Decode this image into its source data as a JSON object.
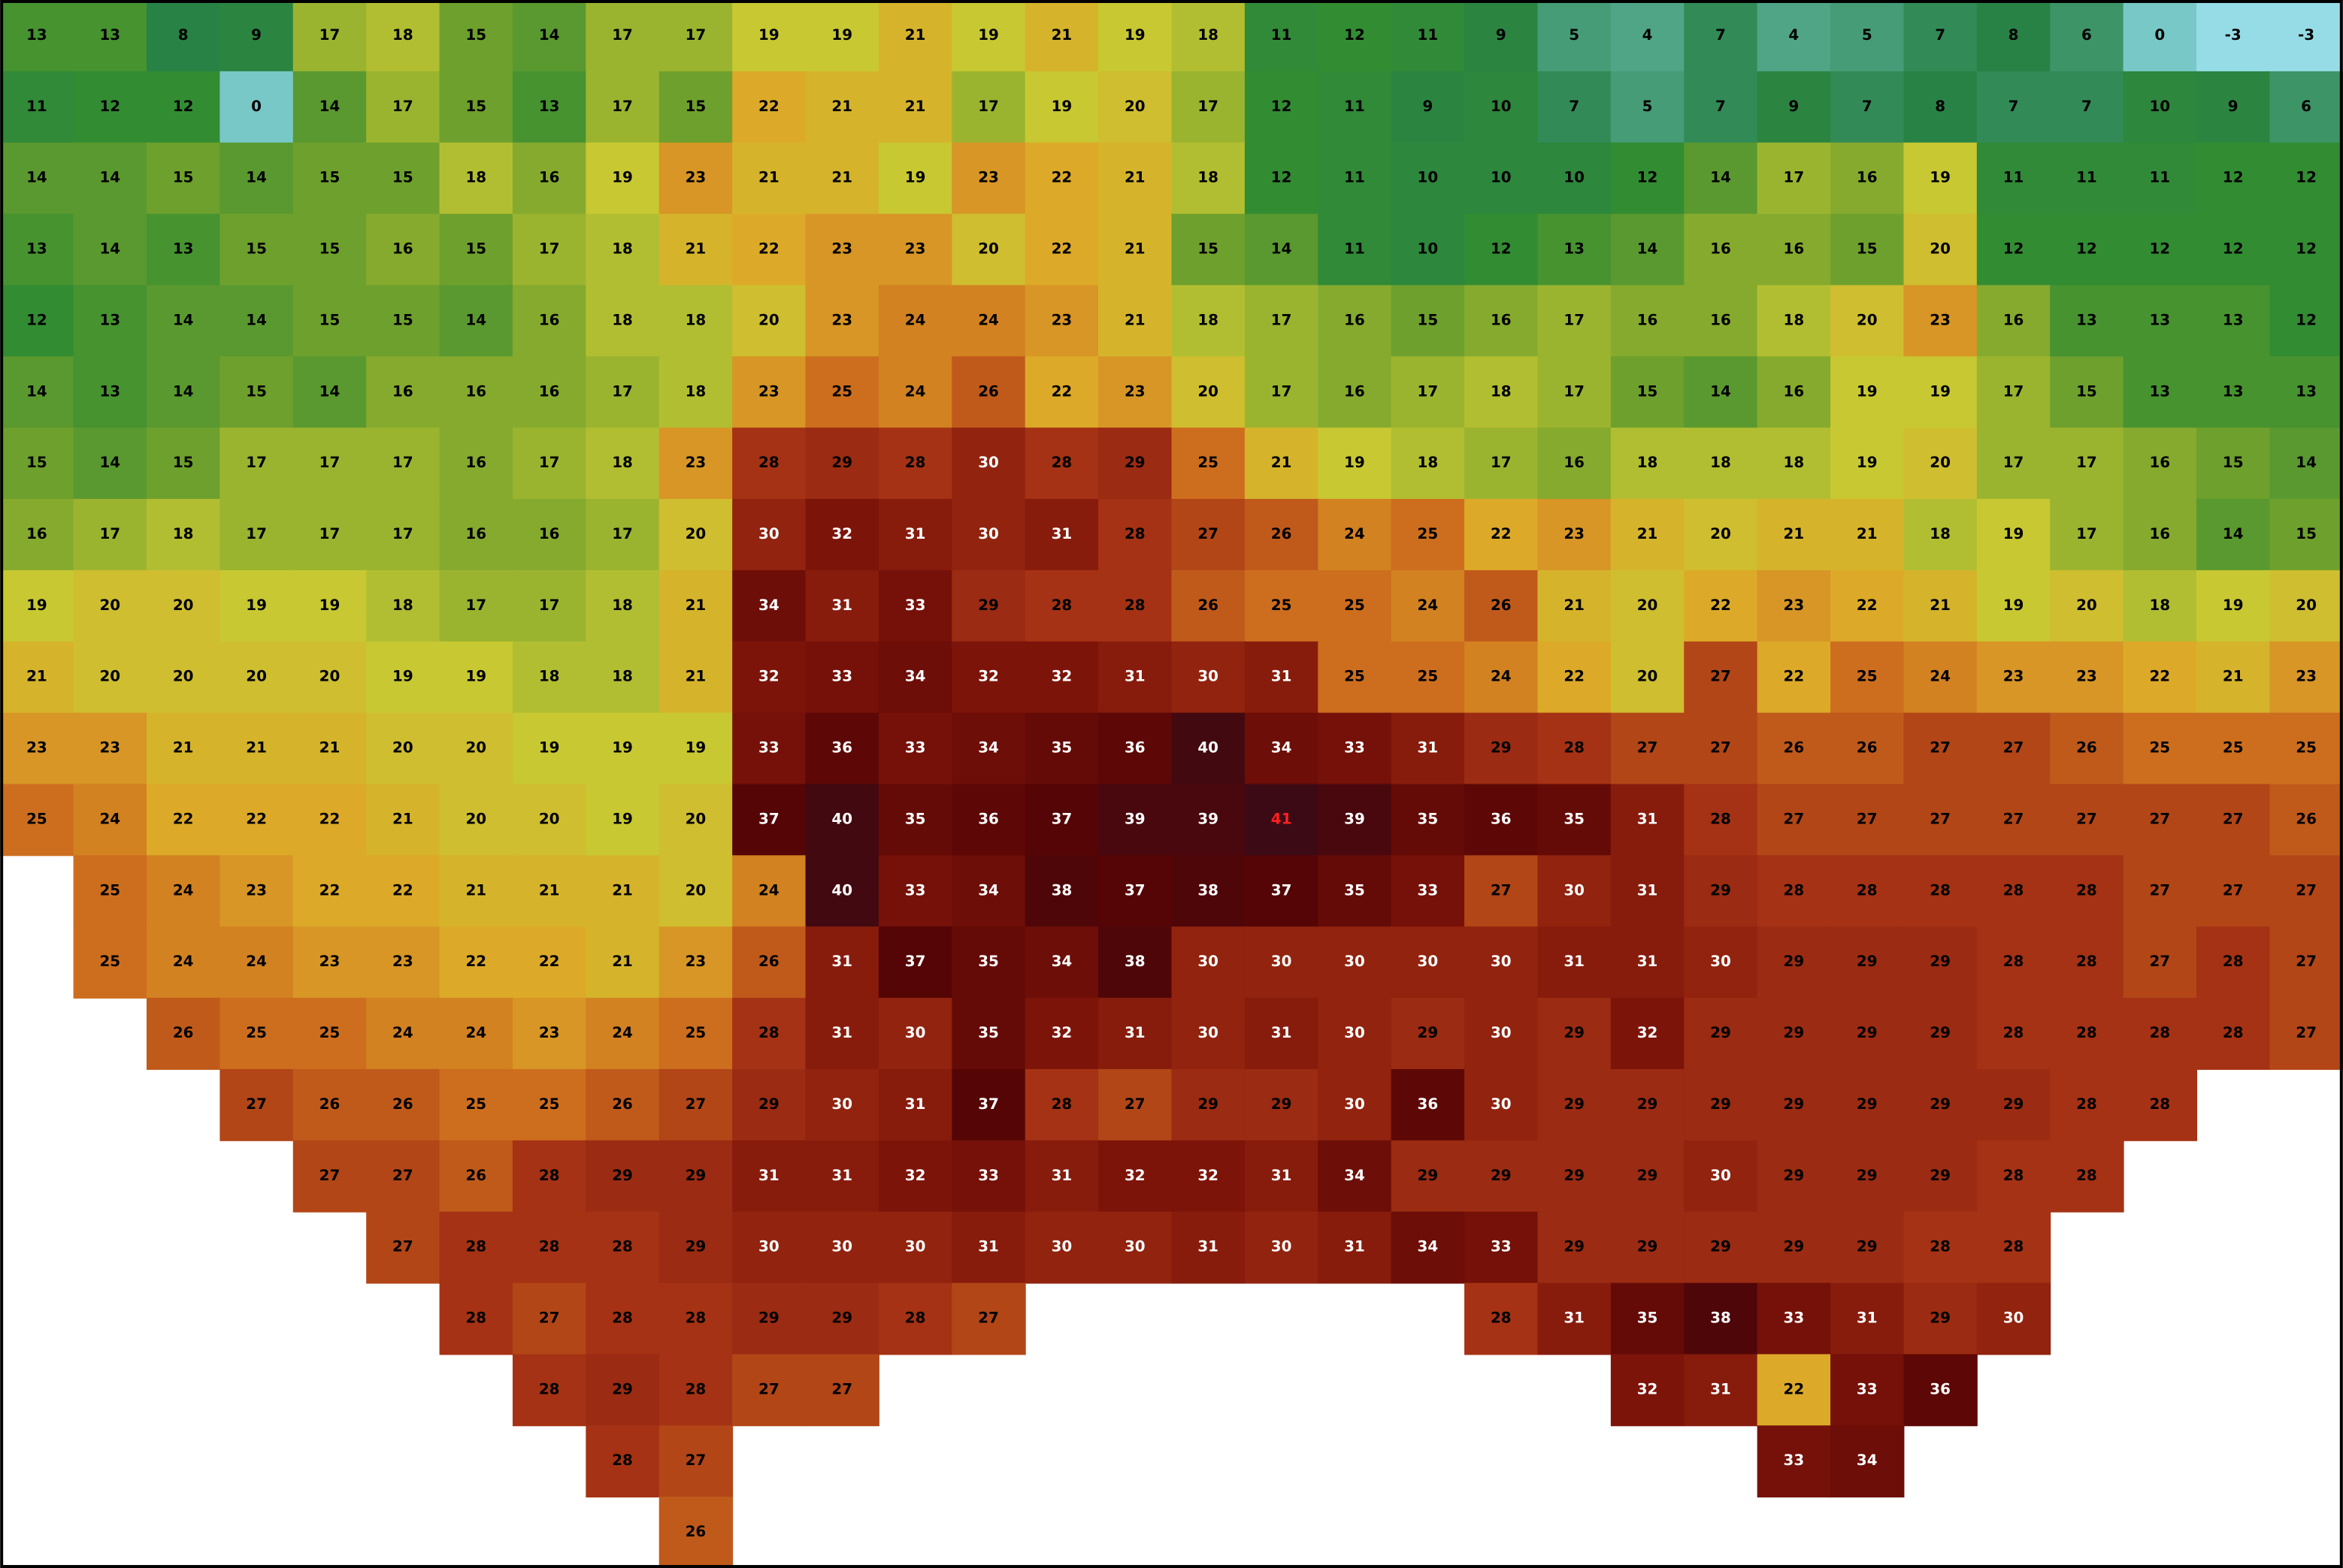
{
  "map": {
    "grid": [
      [
        13,
        13,
        8,
        9,
        17,
        18,
        15,
        14,
        17,
        17,
        19,
        19,
        21,
        19,
        21,
        19,
        18,
        11,
        12,
        11,
        9,
        5,
        4,
        7,
        4,
        5,
        7,
        8,
        6,
        0,
        -3,
        -3
      ],
      [
        11,
        12,
        12,
        0,
        14,
        17,
        15,
        13,
        17,
        15,
        22,
        21,
        21,
        17,
        19,
        20,
        17,
        12,
        11,
        9,
        10,
        7,
        5,
        7,
        9,
        7,
        8,
        7,
        7,
        10,
        9,
        6
      ],
      [
        14,
        14,
        15,
        14,
        15,
        15,
        18,
        16,
        19,
        23,
        21,
        21,
        19,
        23,
        22,
        21,
        18,
        12,
        11,
        10,
        10,
        10,
        12,
        14,
        17,
        16,
        19,
        11,
        11,
        11,
        12,
        12
      ],
      [
        13,
        14,
        13,
        15,
        15,
        16,
        15,
        17,
        18,
        21,
        22,
        23,
        23,
        20,
        22,
        21,
        15,
        14,
        11,
        10,
        12,
        13,
        14,
        16,
        16,
        15,
        20,
        12,
        12,
        12,
        12,
        12
      ],
      [
        12,
        13,
        14,
        14,
        15,
        15,
        14,
        16,
        18,
        18,
        20,
        23,
        24,
        24,
        23,
        21,
        18,
        17,
        16,
        15,
        16,
        17,
        16,
        16,
        18,
        20,
        23,
        16,
        13,
        13,
        13,
        12
      ],
      [
        14,
        13,
        14,
        15,
        14,
        16,
        16,
        16,
        17,
        18,
        23,
        25,
        24,
        26,
        22,
        23,
        20,
        17,
        16,
        17,
        18,
        17,
        15,
        14,
        16,
        19,
        19,
        17,
        15,
        13,
        13,
        13
      ],
      [
        15,
        14,
        15,
        17,
        17,
        17,
        16,
        17,
        18,
        23,
        28,
        29,
        28,
        30,
        28,
        29,
        25,
        21,
        19,
        18,
        17,
        16,
        18,
        18,
        18,
        19,
        20,
        17,
        17,
        16,
        15,
        14
      ],
      [
        16,
        17,
        18,
        17,
        17,
        17,
        16,
        16,
        17,
        20,
        30,
        32,
        31,
        30,
        31,
        28,
        27,
        26,
        24,
        25,
        22,
        23,
        21,
        20,
        21,
        21,
        18,
        19,
        17,
        16,
        14,
        15
      ],
      [
        19,
        20,
        20,
        19,
        19,
        18,
        17,
        17,
        18,
        21,
        34,
        31,
        33,
        29,
        28,
        28,
        26,
        25,
        25,
        24,
        26,
        21,
        20,
        22,
        23,
        22,
        21,
        19,
        20,
        18,
        19,
        20
      ],
      [
        21,
        20,
        20,
        20,
        20,
        19,
        19,
        18,
        18,
        21,
        32,
        33,
        34,
        32,
        32,
        31,
        30,
        31,
        25,
        25,
        24,
        22,
        20,
        27,
        22,
        25,
        24,
        23,
        23,
        22,
        21,
        23
      ],
      [
        23,
        23,
        21,
        21,
        21,
        20,
        20,
        19,
        19,
        19,
        33,
        36,
        33,
        34,
        35,
        36,
        40,
        34,
        33,
        31,
        29,
        28,
        27,
        27,
        26,
        26,
        27,
        27,
        26,
        25,
        25,
        25
      ],
      [
        25,
        24,
        22,
        22,
        22,
        21,
        20,
        20,
        19,
        20,
        37,
        40,
        35,
        36,
        37,
        39,
        39,
        41,
        39,
        35,
        36,
        35,
        31,
        28,
        27,
        27,
        27,
        27,
        27,
        27,
        27,
        26
      ],
      [
        null,
        25,
        24,
        23,
        22,
        22,
        21,
        21,
        21,
        20,
        24,
        40,
        33,
        34,
        38,
        37,
        38,
        37,
        35,
        33,
        27,
        30,
        31,
        29,
        28,
        28,
        28,
        28,
        28,
        27,
        27,
        27
      ],
      [
        null,
        25,
        24,
        24,
        23,
        23,
        22,
        22,
        21,
        23,
        26,
        31,
        37,
        35,
        34,
        38,
        30,
        30,
        30,
        30,
        30,
        31,
        31,
        30,
        29,
        29,
        29,
        28,
        28,
        27,
        28,
        27
      ],
      [
        null,
        null,
        26,
        25,
        25,
        24,
        24,
        23,
        24,
        25,
        28,
        31,
        30,
        35,
        32,
        31,
        30,
        31,
        30,
        29,
        30,
        29,
        32,
        29,
        29,
        29,
        29,
        28,
        28,
        28,
        28,
        27
      ],
      [
        null,
        null,
        null,
        27,
        26,
        26,
        25,
        25,
        26,
        27,
        29,
        30,
        31,
        37,
        28,
        27,
        29,
        29,
        30,
        36,
        30,
        29,
        29,
        29,
        29,
        29,
        29,
        29,
        28,
        28,
        null,
        null
      ],
      [
        null,
        null,
        null,
        null,
        27,
        27,
        26,
        28,
        29,
        29,
        31,
        31,
        32,
        33,
        31,
        32,
        32,
        31,
        34,
        29,
        29,
        29,
        29,
        30,
        29,
        29,
        29,
        28,
        28,
        null,
        null,
        null
      ],
      [
        null,
        null,
        null,
        null,
        null,
        27,
        28,
        28,
        28,
        29,
        30,
        30,
        30,
        31,
        30,
        30,
        31,
        30,
        31,
        34,
        33,
        29,
        29,
        29,
        29,
        29,
        28,
        28,
        null,
        null,
        null,
        null
      ],
      [
        null,
        null,
        null,
        null,
        null,
        null,
        28,
        27,
        28,
        28,
        29,
        29,
        28,
        27,
        null,
        null,
        null,
        null,
        null,
        null,
        28,
        31,
        35,
        38,
        33,
        31,
        29,
        30,
        null,
        null,
        null,
        null
      ],
      [
        null,
        null,
        null,
        null,
        null,
        null,
        null,
        28,
        29,
        28,
        27,
        27,
        null,
        null,
        null,
        null,
        null,
        null,
        null,
        null,
        null,
        null,
        32,
        31,
        22,
        33,
        36,
        null,
        null,
        null,
        null,
        null
      ],
      [
        null,
        null,
        null,
        null,
        null,
        null,
        null,
        null,
        28,
        27,
        null,
        null,
        null,
        null,
        null,
        null,
        null,
        null,
        null,
        null,
        null,
        null,
        null,
        null,
        33,
        34,
        null,
        null,
        null,
        null,
        null,
        null
      ],
      [
        null,
        null,
        null,
        null,
        null,
        null,
        null,
        null,
        null,
        26,
        null,
        null,
        null,
        null,
        null,
        null,
        null,
        null,
        null,
        null,
        null,
        null,
        null,
        null,
        null,
        null,
        null,
        null,
        null,
        null,
        null,
        null
      ]
    ]
  }
}
